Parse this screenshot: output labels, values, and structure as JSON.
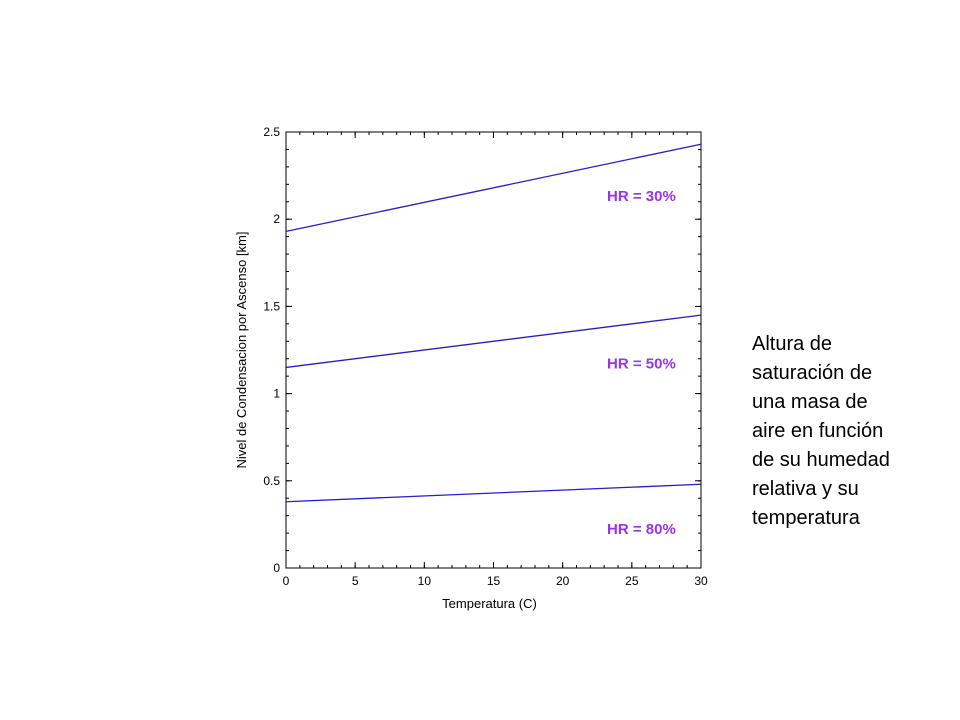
{
  "chart_data": {
    "type": "line",
    "title": "",
    "xlabel": "Temperatura (C)",
    "ylabel": "Nivel de Condensacion por Ascenso [km]",
    "xlim": [
      0,
      30
    ],
    "ylim": [
      0,
      2.5
    ],
    "xticks": [
      0,
      5,
      10,
      15,
      20,
      25,
      30
    ],
    "yticks": [
      0,
      0.5,
      1,
      1.5,
      2,
      2.5
    ],
    "xtick_labels": [
      "0",
      "5",
      "10",
      "15",
      "20",
      "25",
      "30"
    ],
    "ytick_labels": [
      "0",
      "0.5",
      "1",
      "1.5",
      "2",
      "2.5"
    ],
    "grid": false,
    "line_color": "#1f1fcc",
    "label_color": "#9933ee",
    "series": [
      {
        "name": "HR = 30%",
        "x": [
          0,
          30
        ],
        "y": [
          1.93,
          2.43
        ]
      },
      {
        "name": "HR = 50%",
        "x": [
          0,
          30
        ],
        "y": [
          1.15,
          1.45
        ]
      },
      {
        "name": "HR = 80%",
        "x": [
          0,
          30
        ],
        "y": [
          0.38,
          0.48
        ]
      }
    ]
  },
  "caption": {
    "lines": [
      "Altura de",
      "saturación de",
      "una masa de",
      "aire en función",
      "de su humedad",
      "relativa y su",
      "temperatura"
    ]
  }
}
